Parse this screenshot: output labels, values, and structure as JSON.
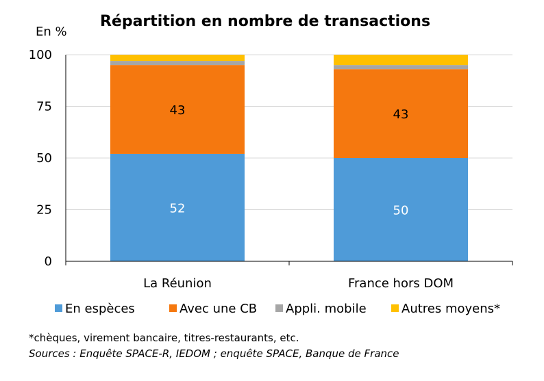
{
  "chart_data": {
    "type": "bar",
    "stacked": true,
    "title": "Répartition en nombre de transactions",
    "unit_label": "En %",
    "ylim": [
      0,
      100
    ],
    "yticks": [
      "0",
      "25",
      "50",
      "75",
      "100"
    ],
    "grid": true,
    "legend_position": "bottom",
    "categories": [
      "La Réunion",
      "France hors DOM"
    ],
    "series": [
      {
        "name": "En espèces",
        "color": "#4f9bd8",
        "values": [
          52,
          50
        ],
        "labels": [
          "52",
          "50"
        ]
      },
      {
        "name": "Avec une CB",
        "color": "#f5780f",
        "values": [
          43,
          43
        ],
        "labels": [
          "43",
          "43"
        ]
      },
      {
        "name": "Appli. mobile",
        "color": "#a6a6a6",
        "values": [
          2,
          2
        ],
        "labels": [
          "",
          ""
        ]
      },
      {
        "name": "Autres moyens*",
        "color": "#ffc000",
        "values": [
          3,
          5
        ],
        "labels": [
          "",
          ""
        ]
      }
    ]
  },
  "footnote": "*chèques, virement bancaire, titres-restaurants, etc.",
  "sources": "Sources : Enquête SPACE-R, IEDOM ; enquête SPACE, Banque de France"
}
